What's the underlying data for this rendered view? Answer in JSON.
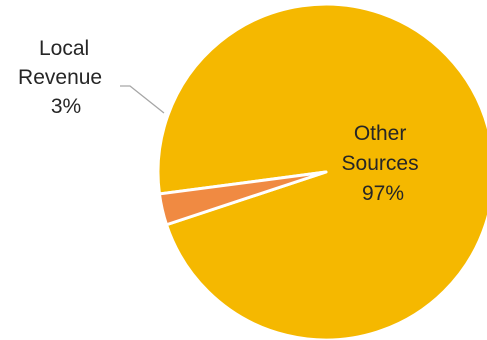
{
  "chart_data": {
    "type": "pie",
    "title": "",
    "slices": [
      {
        "name_lines": [
          "Other",
          "Sources"
        ],
        "value": 97,
        "label": "97%",
        "color": "#F5B800"
      },
      {
        "name_lines": [
          "Local",
          "Revenue"
        ],
        "value": 3,
        "label": "3%",
        "color": "#F08A42"
      }
    ],
    "legend": "none",
    "slice_border_color": "#FFFFFF",
    "leader_line_color": "#A6A6A6"
  }
}
